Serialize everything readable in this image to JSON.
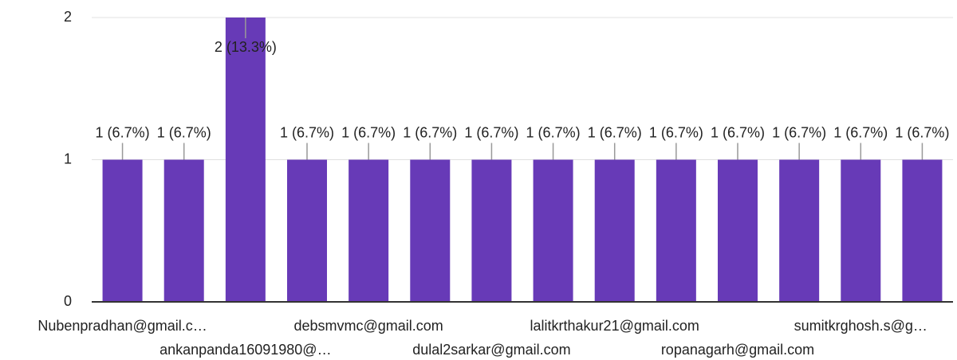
{
  "chart_data": {
    "type": "bar",
    "categories": [
      "Nubenpradhan@gmail.c…",
      null,
      "ankanpanda16091980@…",
      null,
      "debsmvmc@gmail.com",
      null,
      "dulal2sarkar@gmail.com",
      null,
      "lalitkrthakur21@gmail.com",
      null,
      "ropanagarh@gmail.com",
      null,
      "sumitkrghosh.s@g…",
      null
    ],
    "values": [
      1,
      1,
      2,
      1,
      1,
      1,
      1,
      1,
      1,
      1,
      1,
      1,
      1,
      1
    ],
    "value_labels": [
      "1 (6.7%)",
      "1 (6.7%)",
      "2 (13.3%)",
      "1 (6.7%)",
      "1 (6.7%)",
      "1 (6.7%)",
      "1 (6.7%)",
      "1 (6.7%)",
      "1 (6.7%)",
      "1 (6.7%)",
      "1 (6.7%)",
      "1 (6.7%)",
      "1 (6.7%)",
      "1 (6.7%)"
    ],
    "color": "#673ab7",
    "ylim": [
      0,
      2
    ],
    "yticks": [
      0,
      1,
      2
    ],
    "grid": true
  }
}
